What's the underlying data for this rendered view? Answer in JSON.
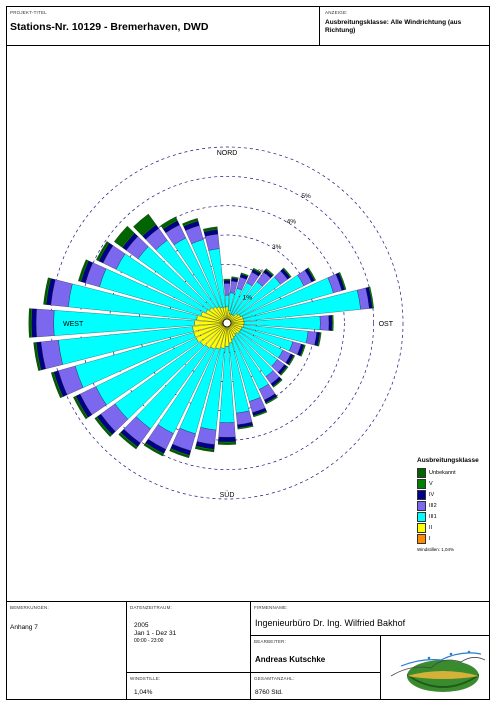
{
  "header": {
    "station_caption": "PROJEKT-TITEL",
    "station": "Stations-Nr. 10129 - Bremerhaven, DWD",
    "display_caption": "ANZEIGE:",
    "display_title": "Ausbreitungsklasse: Alle Windrichtung (aus Richtung)"
  },
  "chart_data": {
    "type": "wind-rose",
    "directions_deg": [
      0,
      10,
      20,
      30,
      40,
      50,
      60,
      70,
      80,
      90,
      100,
      110,
      120,
      130,
      140,
      150,
      160,
      170,
      180,
      190,
      200,
      210,
      220,
      230,
      240,
      250,
      260,
      270,
      280,
      290,
      300,
      310,
      320,
      330,
      340,
      350
    ],
    "class_order": [
      "I",
      "II",
      "III",
      "III2",
      "IV",
      "V",
      "Unbekannt"
    ],
    "series": [
      {
        "name": "I",
        "color": "#ff8c00",
        "values": [
          0.05,
          0.04,
          0.03,
          0.03,
          0.04,
          0.05,
          0.06,
          0.07,
          0.08,
          0.08,
          0.08,
          0.08,
          0.07,
          0.07,
          0.06,
          0.07,
          0.08,
          0.09,
          0.1,
          0.12,
          0.13,
          0.14,
          0.15,
          0.16,
          0.17,
          0.18,
          0.18,
          0.16,
          0.14,
          0.12,
          0.1,
          0.09,
          0.08,
          0.07,
          0.06,
          0.05
        ]
      },
      {
        "name": "II",
        "color": "#ffff00",
        "values": [
          0.5,
          0.4,
          0.3,
          0.3,
          0.3,
          0.4,
          0.45,
          0.5,
          0.5,
          0.5,
          0.5,
          0.45,
          0.45,
          0.45,
          0.4,
          0.45,
          0.5,
          0.6,
          0.7,
          0.75,
          0.8,
          0.85,
          0.9,
          0.95,
          1.0,
          1.0,
          1.0,
          0.95,
          0.9,
          0.8,
          0.7,
          0.65,
          0.6,
          0.55,
          0.5,
          0.5
        ]
      },
      {
        "name": "III",
        "color": "#00ffff",
        "values": [
          0.4,
          0.6,
          0.9,
          1.2,
          1.4,
          1.8,
          2.4,
          3.2,
          4.0,
          2.6,
          2.2,
          1.8,
          1.6,
          1.6,
          1.8,
          2.0,
          2.2,
          2.4,
          2.6,
          2.8,
          3.0,
          3.2,
          3.4,
          3.6,
          3.8,
          4.2,
          4.6,
          4.8,
          4.4,
          3.6,
          3.4,
          3.0,
          2.8,
          2.6,
          2.4,
          2.0
        ]
      },
      {
        "name": "III2",
        "color": "#7b68ee",
        "values": [
          0.4,
          0.4,
          0.4,
          0.4,
          0.4,
          0.3,
          0.3,
          0.3,
          0.3,
          0.3,
          0.3,
          0.3,
          0.3,
          0.3,
          0.3,
          0.4,
          0.4,
          0.4,
          0.5,
          0.5,
          0.6,
          0.6,
          0.6,
          0.6,
          0.6,
          0.6,
          0.6,
          0.6,
          0.6,
          0.5,
          0.5,
          0.5,
          0.5,
          0.5,
          0.5,
          0.5
        ]
      },
      {
        "name": "IV",
        "color": "#00008b",
        "values": [
          0.1,
          0.1,
          0.1,
          0.1,
          0.1,
          0.1,
          0.1,
          0.1,
          0.1,
          0.1,
          0.1,
          0.1,
          0.1,
          0.1,
          0.1,
          0.1,
          0.1,
          0.1,
          0.15,
          0.15,
          0.15,
          0.15,
          0.15,
          0.15,
          0.15,
          0.15,
          0.15,
          0.15,
          0.15,
          0.15,
          0.15,
          0.15,
          0.15,
          0.15,
          0.15,
          0.15
        ]
      },
      {
        "name": "V",
        "color": "#008000",
        "values": [
          0.05,
          0.05,
          0.05,
          0.05,
          0.05,
          0.05,
          0.05,
          0.05,
          0.05,
          0.05,
          0.05,
          0.05,
          0.05,
          0.05,
          0.05,
          0.05,
          0.05,
          0.05,
          0.05,
          0.05,
          0.05,
          0.05,
          0.05,
          0.05,
          0.05,
          0.05,
          0.05,
          0.05,
          0.05,
          0.05,
          0.05,
          0.05,
          0.05,
          0.05,
          0.05,
          0.05
        ]
      },
      {
        "name": "Unbekannt",
        "color": "#006400",
        "values": [
          0.0,
          0.0,
          0.0,
          0.0,
          0.0,
          0.0,
          0.0,
          0.0,
          0.0,
          0.0,
          0.0,
          0.0,
          0.0,
          0.0,
          0.0,
          0.0,
          0.0,
          0.0,
          0.05,
          0.05,
          0.05,
          0.05,
          0.05,
          0.05,
          0.05,
          0.05,
          0.05,
          0.05,
          0.05,
          0.05,
          0.05,
          0.3,
          0.4,
          0.1,
          0.05,
          0.05
        ]
      }
    ],
    "rings": [
      {
        "value": 1,
        "label": "1%"
      },
      {
        "value": 2,
        "label": "2%"
      },
      {
        "value": 3,
        "label": "3%"
      },
      {
        "value": 4,
        "label": "4%"
      },
      {
        "value": 5,
        "label": "5%"
      }
    ],
    "rmax": 6,
    "compass": {
      "north": "NORD",
      "south": "SÜD",
      "east": "OST",
      "west": "WEST"
    },
    "legend": {
      "title": "Ausbreitungsklasse",
      "labels": [
        "Unbekannt",
        "V",
        "IV",
        "III2",
        "III1",
        "II",
        "I"
      ],
      "colors": [
        "#006400",
        "#008000",
        "#00008b",
        "#7b68ee",
        "#00ffff",
        "#ffff00",
        "#ff8c00"
      ],
      "note": "Windstillen: 1,04%"
    }
  },
  "footer": {
    "bemerkungen_caption": "BEMERKUNGEN:",
    "bemerkungen": "Anhang 7",
    "datenzeitraum_caption": "DATENZEITRAUM:",
    "datenzeitraum_lines": [
      "2005",
      "Jan 1 - Dez 31",
      "00:00 - 23:00"
    ],
    "firma_caption": "FIRMENNAME:",
    "firma": "Ingenieurbüro Dr. Ing. Wilfried Bakhof",
    "bearbeiter_caption": "BEARBEITER:",
    "bearbeiter": "Andreas Kutschke",
    "windstille_caption": "WINDSTILLE:",
    "windstille": "1,04%",
    "gesamtanzahl_caption": "GESAMTANZAHL:",
    "gesamtanzahl": "8760 Std."
  }
}
